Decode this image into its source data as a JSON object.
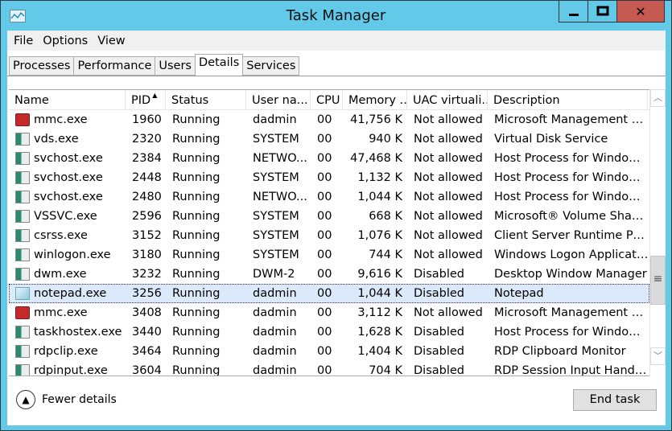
{
  "window": {
    "title": "Task Manager",
    "minimize": "—",
    "maximize": "☐",
    "close": "✕"
  },
  "menu": [
    "File",
    "Options",
    "View"
  ],
  "tabs": [
    {
      "label": "Processes"
    },
    {
      "label": "Performance"
    },
    {
      "label": "Users"
    },
    {
      "label": "Details",
      "active": true
    },
    {
      "label": "Services"
    }
  ],
  "columns": [
    "Name",
    "PID",
    "Status",
    "User na...",
    "CPU",
    "Memory ...",
    "UAC virtuali...",
    "Description"
  ],
  "sort": {
    "column": "PID",
    "direction": "ascending"
  },
  "rows": [
    [
      "mmc.exe",
      "1960",
      "Running",
      "dadmin",
      "00",
      "41,756 K",
      "Not allowed",
      "Microsoft Management Co..."
    ],
    [
      "vds.exe",
      "2320",
      "Running",
      "SYSTEM",
      "00",
      "940 K",
      "Not allowed",
      "Virtual Disk Service"
    ],
    [
      "svchost.exe",
      "2384",
      "Running",
      "NETWO...",
      "00",
      "47,468 K",
      "Not allowed",
      "Host Process for Windows ..."
    ],
    [
      "svchost.exe",
      "2448",
      "Running",
      "SYSTEM",
      "00",
      "1,132 K",
      "Not allowed",
      "Host Process for Windows ..."
    ],
    [
      "svchost.exe",
      "2480",
      "Running",
      "NETWO...",
      "00",
      "1,044 K",
      "Not allowed",
      "Host Process for Windows ..."
    ],
    [
      "VSSVC.exe",
      "2596",
      "Running",
      "SYSTEM",
      "00",
      "668 K",
      "Not allowed",
      "Microsoft® Volume Shado..."
    ],
    [
      "csrss.exe",
      "3152",
      "Running",
      "SYSTEM",
      "00",
      "1,076 K",
      "Not allowed",
      "Client Server Runtime Proc..."
    ],
    [
      "winlogon.exe",
      "3180",
      "Running",
      "SYSTEM",
      "00",
      "744 K",
      "Not allowed",
      "Windows Logon Applicati..."
    ],
    [
      "dwm.exe",
      "3232",
      "Running",
      "DWM-2",
      "00",
      "9,616 K",
      "Disabled",
      "Desktop Window Manager"
    ],
    [
      "notepad.exe",
      "3256",
      "Running",
      "dadmin",
      "00",
      "1,044 K",
      "Disabled",
      "Notepad"
    ],
    [
      "mmc.exe",
      "3408",
      "Running",
      "dadmin",
      "00",
      "3,112 K",
      "Not allowed",
      "Microsoft Management Co..."
    ],
    [
      "taskhostex.exe",
      "3440",
      "Running",
      "dadmin",
      "00",
      "1,628 K",
      "Disabled",
      "Host Process for Windows ..."
    ],
    [
      "rdpclip.exe",
      "3464",
      "Running",
      "dadmin",
      "00",
      "1,404 K",
      "Disabled",
      "RDP Clipboard Monitor"
    ],
    [
      "rdpinput.exe",
      "3604",
      "Running",
      "dadmin",
      "00",
      "704 K",
      "Disabled",
      "RDP Session Input Handler"
    ]
  ],
  "row_icons": [
    "mmc",
    "app",
    "app",
    "app",
    "app",
    "app",
    "app",
    "app",
    "app",
    "notepad",
    "mmc",
    "app",
    "app",
    "app"
  ],
  "selected_row": 9,
  "footer": {
    "fewer_details": "Fewer details",
    "end_task": "End task"
  },
  "colors": {
    "titlebar": "#62c9e9",
    "close": "#c75a50",
    "selection": "#dbe9fb"
  }
}
